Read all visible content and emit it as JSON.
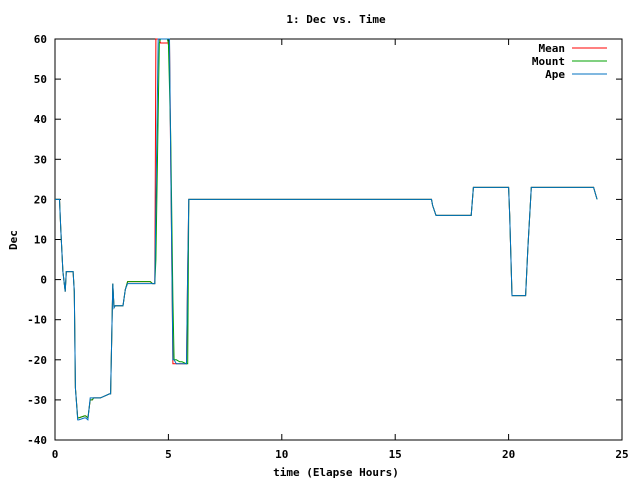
{
  "chart_data": {
    "type": "line",
    "title": "1: Dec vs. Time",
    "xlabel": "time (Elapse Hours)",
    "ylabel": "Dec",
    "xlim": [
      0,
      25
    ],
    "ylim": [
      -40,
      60
    ],
    "xticks": [
      0,
      5,
      10,
      15,
      20,
      25
    ],
    "yticks": [
      -40,
      -30,
      -20,
      -10,
      0,
      10,
      20,
      30,
      40,
      50,
      60
    ],
    "grid": false,
    "legend_position": "top-right",
    "series": [
      {
        "name": "Mean",
        "color": "#ff0000",
        "x": [
          0,
          0.2,
          0.25,
          0.35,
          0.45,
          0.5,
          0.8,
          0.85,
          0.9,
          1.0,
          1.05,
          1.3,
          1.35,
          1.45,
          1.55,
          1.65,
          1.7,
          2.0,
          2.4,
          2.45,
          2.55,
          2.6,
          2.65,
          2.75,
          3.0,
          3.1,
          3.2,
          3.3,
          4.2,
          4.3,
          4.4,
          4.45,
          4.6,
          4.65,
          4.8,
          5.0,
          5.05,
          5.1,
          5.15,
          5.2,
          5.25,
          5.35,
          5.5,
          5.6,
          5.8,
          5.85,
          5.9,
          6.0,
          10.0,
          14.0,
          16.6,
          16.65,
          16.8,
          17.0,
          18.0,
          18.35,
          18.45,
          19.0,
          20.0,
          20.05,
          20.15,
          20.25,
          20.5,
          20.75,
          20.85,
          21.0,
          22.0,
          23.0,
          23.75,
          23.85,
          23.9
        ],
        "y": [
          20,
          20,
          13,
          2,
          -3,
          2,
          2,
          -3,
          -27,
          -34.5,
          -34.5,
          -34,
          -34,
          -34.5,
          -30,
          -30,
          -29.5,
          -29.5,
          -28.5,
          -28.5,
          -1,
          -7,
          -6.5,
          -6.5,
          -6.5,
          -2.5,
          -0.5,
          -0.5,
          -0.5,
          -1,
          -1,
          60,
          60,
          59,
          59,
          59,
          59,
          30,
          5,
          -21,
          -21,
          -21,
          -21,
          -21,
          -21,
          3,
          20,
          20,
          20,
          20,
          20,
          18.5,
          16,
          16,
          16,
          16,
          23,
          23,
          23,
          16,
          -4,
          -4,
          -4,
          -4,
          8,
          23,
          23,
          23,
          23,
          21,
          20
        ]
      },
      {
        "name": "Mount",
        "color": "#00a000",
        "x": [
          0,
          0.2,
          0.25,
          0.35,
          0.45,
          0.5,
          0.8,
          0.85,
          0.9,
          1.0,
          1.05,
          1.3,
          1.35,
          1.45,
          1.55,
          1.65,
          1.7,
          2.0,
          2.4,
          2.45,
          2.55,
          2.6,
          2.65,
          2.75,
          3.0,
          3.1,
          3.2,
          3.3,
          4.2,
          4.3,
          4.4,
          4.45,
          4.6,
          4.65,
          4.8,
          4.95,
          5.0,
          5.1,
          5.2,
          5.25,
          5.35,
          5.5,
          5.6,
          5.8,
          5.85,
          5.9,
          6.0,
          10.0,
          14.0,
          16.6,
          16.65,
          16.8,
          17.0,
          18.0,
          18.35,
          18.45,
          19.0,
          20.0,
          20.05,
          20.15,
          20.25,
          20.5,
          20.75,
          20.85,
          21.0,
          22.0,
          23.0,
          23.75,
          23.85,
          23.9
        ],
        "y": [
          20,
          20,
          13,
          2,
          -3,
          2,
          2,
          -3,
          -27,
          -34.5,
          -34.5,
          -34,
          -34,
          -34.5,
          -30,
          -30,
          -29.5,
          -29.5,
          -28.5,
          -28.5,
          -1,
          -7,
          -6.5,
          -6.5,
          -6.5,
          -2.5,
          -0.5,
          -0.5,
          -0.5,
          -1,
          -1,
          5,
          59,
          60,
          60,
          60,
          59,
          36,
          -5,
          -20,
          -20,
          -20.5,
          -20.5,
          -21,
          -21,
          20,
          20,
          20,
          20,
          20,
          18.5,
          16,
          16,
          16,
          16,
          23,
          23,
          23,
          16,
          -4,
          -4,
          -4,
          -4,
          8,
          23,
          23,
          23,
          23,
          21,
          20
        ]
      },
      {
        "name": "Ape",
        "color": "#0070c0",
        "x": [
          0,
          0.2,
          0.25,
          0.35,
          0.45,
          0.5,
          0.8,
          0.85,
          0.9,
          1.0,
          1.05,
          1.3,
          1.35,
          1.45,
          1.55,
          1.65,
          1.7,
          2.0,
          2.4,
          2.45,
          2.55,
          2.6,
          2.65,
          2.75,
          3.0,
          3.1,
          3.2,
          3.3,
          4.2,
          4.3,
          4.4,
          4.55,
          4.6,
          4.65,
          4.8,
          5.0,
          5.05,
          5.1,
          5.15,
          5.2,
          5.25,
          5.35,
          5.5,
          5.6,
          5.8,
          5.85,
          5.9,
          6.0,
          10.0,
          14.0,
          16.6,
          16.65,
          16.8,
          17.0,
          18.0,
          18.35,
          18.45,
          19.0,
          20.0,
          20.05,
          20.15,
          20.25,
          20.5,
          20.75,
          20.85,
          21.0,
          22.0,
          23.0,
          23.75,
          23.85,
          23.9
        ],
        "y": [
          20,
          20,
          13,
          2,
          -3,
          2,
          2,
          -3,
          -27,
          -35,
          -35,
          -34.5,
          -34.5,
          -35,
          -29.5,
          -29.5,
          -29.5,
          -29.5,
          -28.5,
          -28.5,
          -1,
          -7,
          -6.5,
          -6.5,
          -6.5,
          -2.5,
          -1,
          -1,
          -1,
          -1,
          -1,
          60,
          60,
          60,
          60,
          60,
          60,
          30,
          5,
          -20,
          -20,
          -21,
          -21,
          -21,
          -21,
          3,
          20,
          20,
          20,
          20,
          20,
          18.5,
          16,
          16,
          16,
          16,
          23,
          23,
          23,
          16,
          -4,
          -4,
          -4,
          -4,
          8,
          23,
          23,
          23,
          23,
          21,
          20
        ]
      }
    ]
  }
}
